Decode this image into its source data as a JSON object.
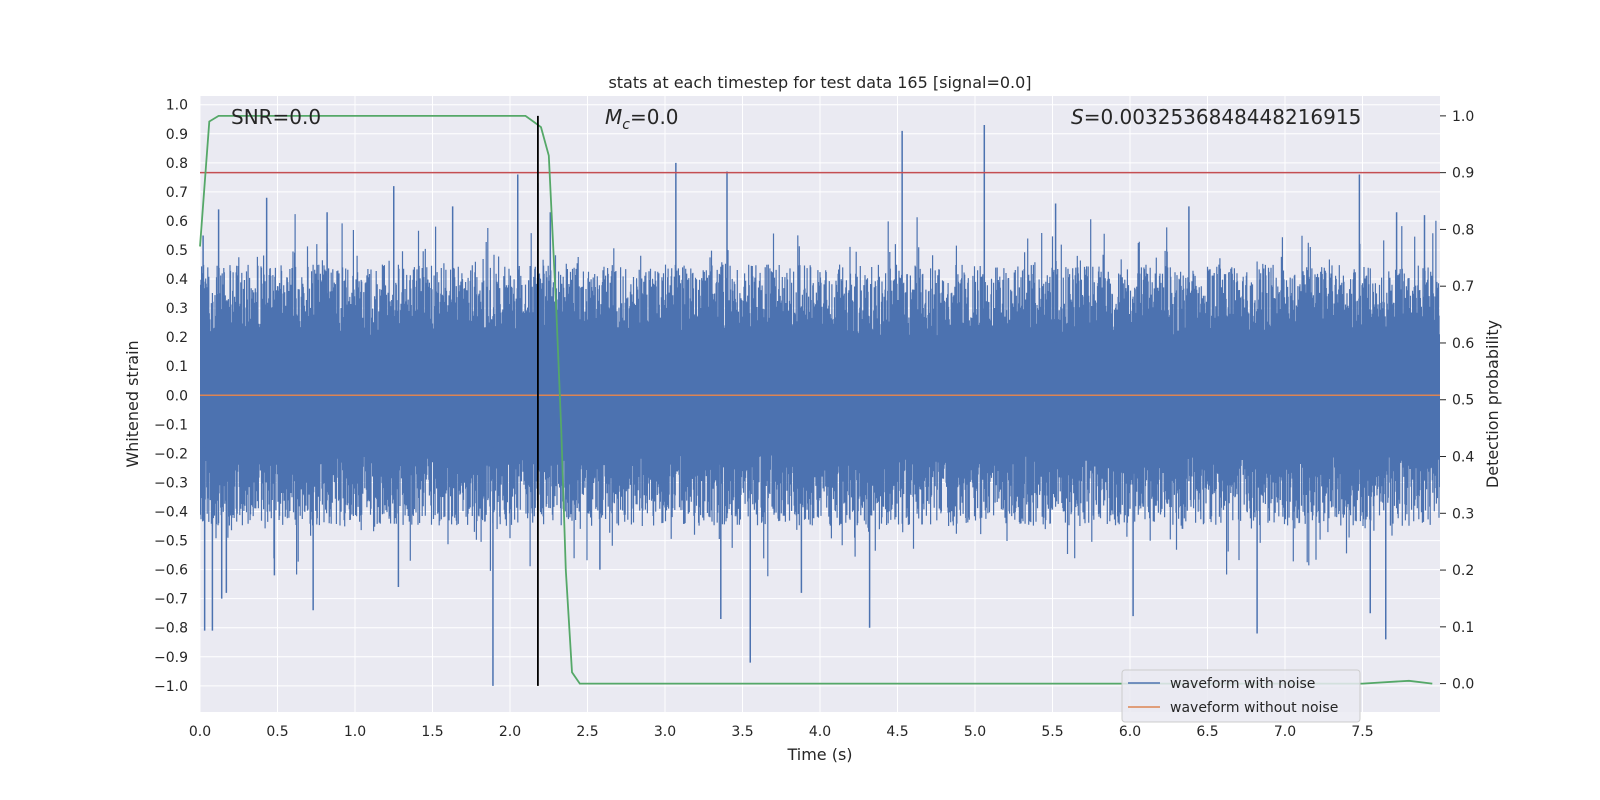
{
  "chart_data": {
    "type": "line",
    "title": "stats at each timestep for test data 165 [signal=0.0]",
    "xlabel": "Time (s)",
    "ylabel": "Whitened strain",
    "ylabel_right": "Detection probability",
    "xlim": [
      0.0,
      8.0
    ],
    "ylim": [
      -1.09,
      1.03
    ],
    "ylim_right": [
      -0.05,
      1.035
    ],
    "xticks": [
      "0.0",
      "0.5",
      "1.0",
      "1.5",
      "2.0",
      "2.5",
      "3.0",
      "3.5",
      "4.0",
      "4.5",
      "5.0",
      "5.5",
      "6.0",
      "6.5",
      "7.0",
      "7.5"
    ],
    "yticks": [
      "1.0",
      "0.9",
      "0.8",
      "0.7",
      "0.6",
      "0.5",
      "0.4",
      "0.3",
      "0.2",
      "0.1",
      "0.0",
      "-0.1",
      "-0.2",
      "-0.3",
      "-0.4",
      "-0.5",
      "-0.6",
      "-0.7",
      "-0.8",
      "-0.9",
      "-1.0"
    ],
    "yticks_right": [
      "1.0",
      "0.9",
      "0.8",
      "0.7",
      "0.6",
      "0.5",
      "0.4",
      "0.3",
      "0.2",
      "0.1",
      "0.0"
    ],
    "annotations": {
      "snr_label": "SNR=0.0",
      "mc_symbol": "M",
      "mc_sub": "c",
      "mc_value": "=0.0",
      "s_symbol": "S",
      "s_value": "=0.0032536848448216915"
    },
    "legend": {
      "location": "lower-right",
      "entries": [
        "waveform with noise",
        "waveform without noise"
      ]
    },
    "colors": {
      "noise": "#4c72b0",
      "clean": "#dd8452",
      "probability": "#55a868",
      "threshold": "#c44e52",
      "marker": "#000000",
      "background": "#eaeaf2",
      "grid": "#ffffff"
    },
    "series": [
      {
        "name": "waveform with noise",
        "kind": "noise-band",
        "envelope_upper": 0.45,
        "envelope_lower": -0.45,
        "spikes": [
          {
            "t": 0.02,
            "v": 0.55
          },
          {
            "t": 0.03,
            "v": -0.81
          },
          {
            "t": 0.08,
            "v": -0.81
          },
          {
            "t": 0.12,
            "v": 0.64
          },
          {
            "t": 0.14,
            "v": -0.7
          },
          {
            "t": 0.17,
            "v": -0.68
          },
          {
            "t": 0.43,
            "v": 0.68
          },
          {
            "t": 0.48,
            "v": -0.62
          },
          {
            "t": 0.73,
            "v": -0.74
          },
          {
            "t": 0.82,
            "v": 0.63
          },
          {
            "t": 1.25,
            "v": 0.72
          },
          {
            "t": 1.28,
            "v": -0.66
          },
          {
            "t": 1.63,
            "v": 0.65
          },
          {
            "t": 1.89,
            "v": -1.0
          },
          {
            "t": 2.05,
            "v": 0.76
          },
          {
            "t": 2.18,
            "v": 0.73
          },
          {
            "t": 2.26,
            "v": 0.63
          },
          {
            "t": 2.58,
            "v": -0.6
          },
          {
            "t": 3.07,
            "v": 0.8
          },
          {
            "t": 3.4,
            "v": 0.77
          },
          {
            "t": 3.36,
            "v": -0.77
          },
          {
            "t": 3.55,
            "v": -0.92
          },
          {
            "t": 3.88,
            "v": -0.68
          },
          {
            "t": 4.32,
            "v": -0.8
          },
          {
            "t": 4.53,
            "v": 0.91
          },
          {
            "t": 5.06,
            "v": 0.93
          },
          {
            "t": 5.52,
            "v": 0.66
          },
          {
            "t": 6.02,
            "v": -0.76
          },
          {
            "t": 6.38,
            "v": 0.65
          },
          {
            "t": 6.82,
            "v": -0.82
          },
          {
            "t": 7.48,
            "v": 0.76
          },
          {
            "t": 7.55,
            "v": -0.75
          },
          {
            "t": 7.65,
            "v": -0.84
          },
          {
            "t": 7.72,
            "v": 0.63
          },
          {
            "t": 7.9,
            "v": 0.62
          }
        ]
      },
      {
        "name": "waveform without noise",
        "x": [
          0.0,
          8.0
        ],
        "y": [
          0.0,
          0.0
        ]
      },
      {
        "name": "detection probability",
        "axis": "right",
        "x": [
          0.0,
          0.06,
          0.12,
          0.2,
          0.5,
          1.0,
          1.5,
          2.0,
          2.1,
          2.15,
          2.2,
          2.25,
          2.3,
          2.33,
          2.36,
          2.4,
          2.45,
          2.5,
          3.0,
          4.0,
          5.0,
          6.0,
          7.0,
          7.5,
          7.8,
          7.95
        ],
        "y": [
          0.77,
          0.99,
          1.0,
          1.0,
          1.0,
          1.0,
          1.0,
          1.0,
          1.0,
          0.99,
          0.98,
          0.93,
          0.65,
          0.45,
          0.2,
          0.02,
          0.0,
          0.0,
          0.0,
          0.0,
          0.0,
          0.0,
          0.0,
          0.0,
          0.005,
          0.0
        ]
      }
    ],
    "threshold_right": 0.9,
    "marker_time": 2.18
  }
}
